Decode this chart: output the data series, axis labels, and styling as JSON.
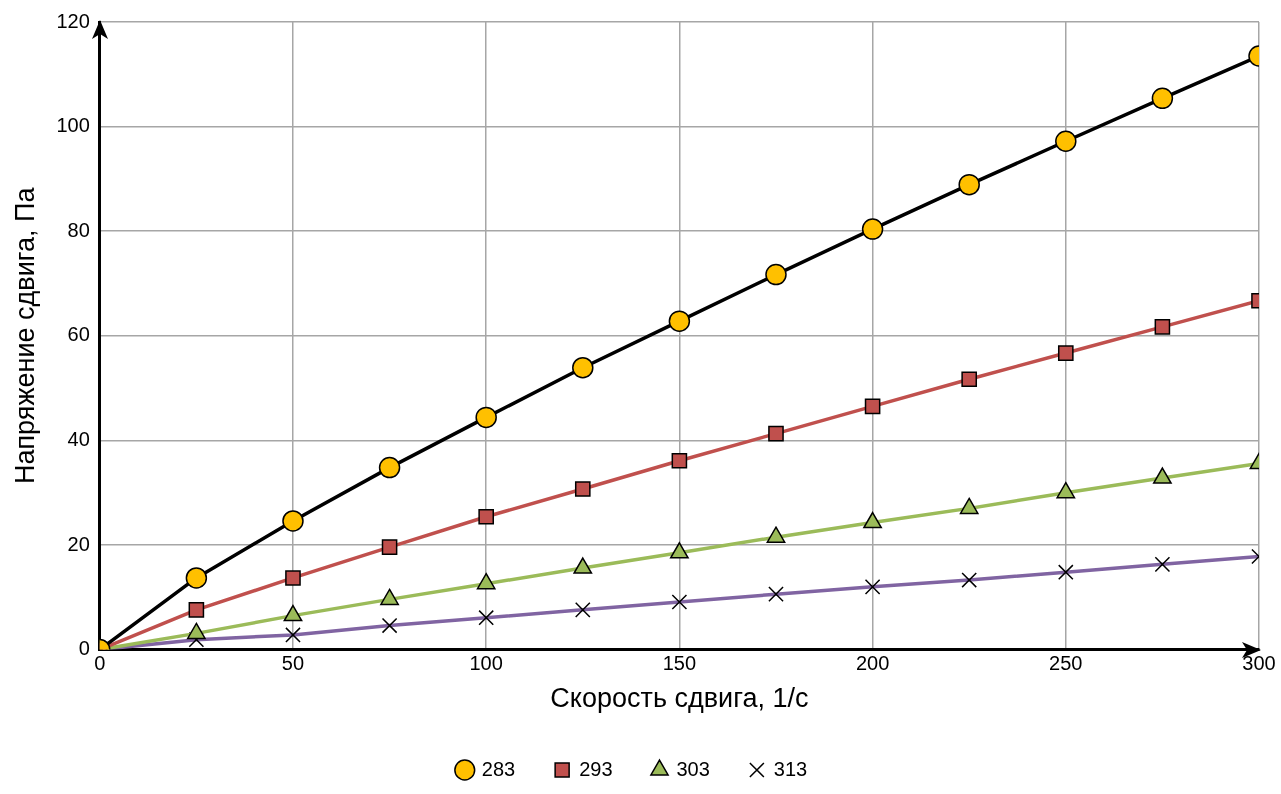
{
  "chart_data": {
    "type": "line",
    "xlabel": "Скорость сдвига, 1/с",
    "ylabel": "Напряжение сдвига, Па",
    "x": [
      0,
      25,
      50,
      75,
      100,
      125,
      150,
      175,
      200,
      225,
      250,
      275,
      300
    ],
    "xlim": [
      0,
      300
    ],
    "xticks": [
      0,
      50,
      100,
      150,
      200,
      250,
      300
    ],
    "ylim": [
      0,
      120
    ],
    "yticks": [
      0,
      20,
      40,
      60,
      80,
      100,
      120
    ],
    "grid": true,
    "legend": "bottom",
    "line_style": "solid",
    "series": [
      {
        "name": "283",
        "color": "#000000",
        "marker": "circle",
        "colors": [
          "#ffc000",
          "#ffc000",
          "#ffc000",
          "#ffc000",
          "#ffc000",
          "#ffc000",
          "#ffc000",
          "#ffc000",
          "#ffc000",
          "#ffc000",
          "#ffc000",
          "#ffc000",
          "#ffc000"
        ],
        "values": [
          0,
          13.7,
          24.6,
          34.8,
          44.4,
          53.9,
          62.8,
          71.7,
          80.4,
          88.9,
          97.2,
          105.4,
          113.5
        ]
      },
      {
        "name": "293",
        "color": "#c0504d",
        "marker": "square",
        "values": [
          0,
          7.6,
          13.7,
          19.6,
          25.4,
          30.7,
          36.1,
          41.3,
          46.5,
          51.7,
          56.7,
          61.7,
          66.7
        ]
      },
      {
        "name": "303",
        "color": "#9bbb59",
        "marker": "triangle",
        "values": [
          0,
          3.1,
          6.5,
          9.6,
          12.6,
          15.6,
          18.5,
          21.5,
          24.3,
          27.0,
          30.0,
          32.8,
          35.6
        ]
      },
      {
        "name": "313",
        "color": "#8064a2",
        "marker": "cross",
        "colors": [
          "#000000",
          "#000000",
          "#000000",
          "#000000",
          "#000000",
          "#000000",
          "#000000",
          "#000000",
          "#000000",
          "#000000",
          "#000000",
          "#000000",
          "#000000"
        ],
        "values": [
          0,
          1.9,
          2.8,
          4.6,
          6.1,
          7.6,
          9.1,
          10.6,
          12.0,
          13.3,
          14.8,
          16.3,
          17.8
        ]
      }
    ]
  }
}
